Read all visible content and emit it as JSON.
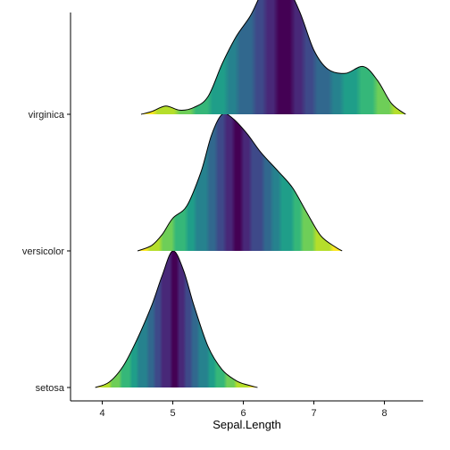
{
  "chart_data": {
    "type": "ridgeline",
    "xlabel": "Sepal.Length",
    "ylabel": "",
    "xlim": [
      3.55,
      8.55
    ],
    "x_ticks": [
      4,
      5,
      6,
      7,
      8
    ],
    "x_tick_labels": [
      "4",
      "5",
      "6",
      "7",
      "8"
    ],
    "categories": [
      "setosa",
      "versicolor",
      "virginica"
    ],
    "fill_scale": "viridis (colored by distance from each ridge's center)",
    "grid": false,
    "legend": "none",
    "series": [
      {
        "name": "setosa",
        "center": 5.01,
        "density": [
          [
            3.9,
            0.0
          ],
          [
            4.1,
            0.04
          ],
          [
            4.3,
            0.16
          ],
          [
            4.5,
            0.36
          ],
          [
            4.7,
            0.6
          ],
          [
            4.85,
            0.82
          ],
          [
            5.0,
            1.0
          ],
          [
            5.15,
            0.86
          ],
          [
            5.3,
            0.6
          ],
          [
            5.5,
            0.3
          ],
          [
            5.7,
            0.13
          ],
          [
            5.9,
            0.05
          ],
          [
            6.05,
            0.02
          ],
          [
            6.2,
            0.0
          ]
        ]
      },
      {
        "name": "versicolor",
        "center": 5.94,
        "density": [
          [
            4.5,
            0.0
          ],
          [
            4.7,
            0.04
          ],
          [
            4.85,
            0.12
          ],
          [
            5.0,
            0.24
          ],
          [
            5.2,
            0.33
          ],
          [
            5.4,
            0.58
          ],
          [
            5.55,
            0.85
          ],
          [
            5.7,
            1.0
          ],
          [
            5.85,
            0.97
          ],
          [
            6.05,
            0.86
          ],
          [
            6.25,
            0.72
          ],
          [
            6.5,
            0.58
          ],
          [
            6.7,
            0.46
          ],
          [
            6.9,
            0.28
          ],
          [
            7.1,
            0.11
          ],
          [
            7.3,
            0.03
          ],
          [
            7.4,
            0.0
          ]
        ]
      },
      {
        "name": "virginica",
        "center": 6.59,
        "density": [
          [
            4.55,
            0.0
          ],
          [
            4.7,
            0.02
          ],
          [
            4.9,
            0.06
          ],
          [
            5.1,
            0.03
          ],
          [
            5.3,
            0.05
          ],
          [
            5.5,
            0.13
          ],
          [
            5.7,
            0.37
          ],
          [
            5.9,
            0.57
          ],
          [
            6.1,
            0.72
          ],
          [
            6.25,
            0.88
          ],
          [
            6.4,
            1.0
          ],
          [
            6.6,
            0.95
          ],
          [
            6.8,
            0.75
          ],
          [
            7.0,
            0.47
          ],
          [
            7.2,
            0.33
          ],
          [
            7.45,
            0.3
          ],
          [
            7.7,
            0.35
          ],
          [
            7.9,
            0.25
          ],
          [
            8.1,
            0.08
          ],
          [
            8.3,
            0.0
          ]
        ]
      }
    ]
  }
}
